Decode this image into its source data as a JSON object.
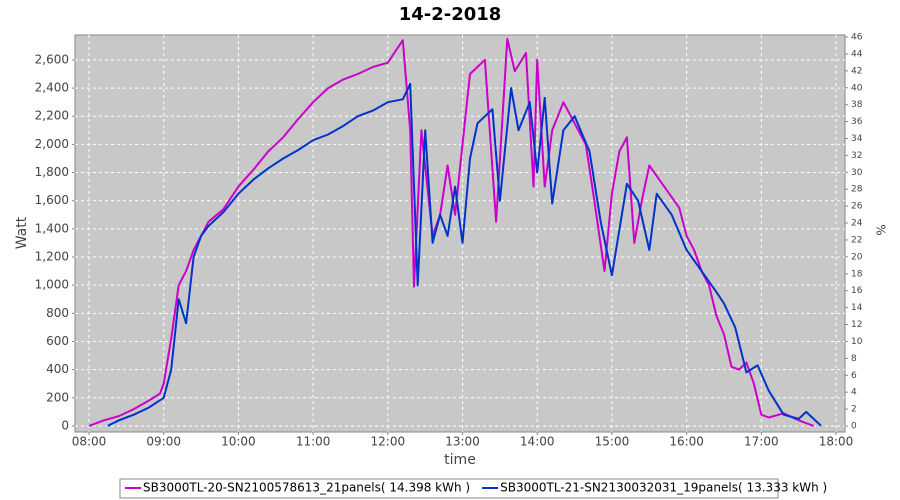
{
  "chart_data": {
    "type": "line",
    "title": "14-2-2018",
    "xlabel": "time",
    "ylabel": "Watt",
    "y2label": "%",
    "series": [
      {
        "name": "SB3000TL-20-SN2100578613_21panels( 14.398 kWh )",
        "color": "#cc00cc",
        "x": [
          8.0,
          8.2,
          8.4,
          8.6,
          8.8,
          8.95,
          9.0,
          9.1,
          9.2,
          9.3,
          9.4,
          9.5,
          9.6,
          9.8,
          10.0,
          10.2,
          10.4,
          10.6,
          10.8,
          11.0,
          11.2,
          11.4,
          11.6,
          11.8,
          12.0,
          12.2,
          12.3,
          12.35,
          12.45,
          12.6,
          12.7,
          12.8,
          12.9,
          13.0,
          13.1,
          13.3,
          13.45,
          13.6,
          13.7,
          13.85,
          13.95,
          14.0,
          14.1,
          14.2,
          14.35,
          14.5,
          14.65,
          14.75,
          14.9,
          15.0,
          15.1,
          15.2,
          15.3,
          15.4,
          15.5,
          15.7,
          15.9,
          16.0,
          16.1,
          16.2,
          16.3,
          16.4,
          16.5,
          16.6,
          16.7,
          16.8,
          16.9,
          17.0,
          17.1,
          17.3,
          17.5,
          17.7
        ],
        "values": [
          0,
          40,
          70,
          120,
          180,
          230,
          300,
          620,
          1000,
          1100,
          1250,
          1350,
          1450,
          1540,
          1700,
          1820,
          1950,
          2050,
          2180,
          2300,
          2400,
          2460,
          2500,
          2550,
          2580,
          2740,
          2100,
          990,
          2100,
          1350,
          1500,
          1850,
          1500,
          2000,
          2500,
          2600,
          1450,
          2750,
          2520,
          2650,
          1700,
          2600,
          1700,
          2100,
          2300,
          2150,
          2000,
          1650,
          1100,
          1650,
          1950,
          2050,
          1300,
          1600,
          1850,
          1700,
          1550,
          1350,
          1250,
          1100,
          1000,
          780,
          650,
          420,
          400,
          450,
          300,
          80,
          60,
          90,
          40,
          0
        ]
      },
      {
        "name": "SB3000TL-21-SN2130032031_19panels( 13.333 kWh )",
        "color": "#0033cc",
        "x": [
          8.25,
          8.4,
          8.6,
          8.8,
          9.0,
          9.1,
          9.2,
          9.3,
          9.4,
          9.5,
          9.6,
          9.8,
          10.0,
          10.2,
          10.4,
          10.6,
          10.8,
          11.0,
          11.2,
          11.4,
          11.6,
          11.8,
          12.0,
          12.2,
          12.3,
          12.4,
          12.5,
          12.6,
          12.7,
          12.8,
          12.9,
          13.0,
          13.1,
          13.2,
          13.4,
          13.5,
          13.65,
          13.75,
          13.9,
          14.0,
          14.1,
          14.2,
          14.35,
          14.5,
          14.7,
          14.85,
          15.0,
          15.2,
          15.35,
          15.5,
          15.6,
          15.8,
          16.0,
          16.2,
          16.4,
          16.5,
          16.65,
          16.8,
          16.95,
          17.1,
          17.3,
          17.5,
          17.6,
          17.8
        ],
        "values": [
          0,
          40,
          80,
          130,
          200,
          400,
          900,
          730,
          1200,
          1350,
          1420,
          1520,
          1650,
          1750,
          1830,
          1900,
          1960,
          2030,
          2070,
          2130,
          2200,
          2240,
          2300,
          2320,
          2430,
          1000,
          2100,
          1300,
          1500,
          1350,
          1700,
          1300,
          1900,
          2150,
          2250,
          1600,
          2400,
          2100,
          2300,
          1800,
          2330,
          1580,
          2100,
          2200,
          1950,
          1450,
          1070,
          1720,
          1600,
          1250,
          1650,
          1500,
          1250,
          1100,
          950,
          870,
          700,
          380,
          430,
          250,
          80,
          50,
          100,
          0
        ]
      }
    ],
    "xlim": [
      7.8125,
      18.12
    ],
    "xticks": [
      {
        "value": 8,
        "label": "08:00"
      },
      {
        "value": 9,
        "label": "09:00"
      },
      {
        "value": 10,
        "label": "10:00"
      },
      {
        "value": 11,
        "label": "11:00"
      },
      {
        "value": 12,
        "label": "12:00"
      },
      {
        "value": 13,
        "label": "13:00"
      },
      {
        "value": 14,
        "label": "14:00"
      },
      {
        "value": 15,
        "label": "15:00"
      },
      {
        "value": 16,
        "label": "16:00"
      },
      {
        "value": 17,
        "label": "17:00"
      },
      {
        "value": 18,
        "label": "18:00"
      }
    ],
    "ylim": [
      -43,
      2777
    ],
    "yticks": [
      0,
      200,
      400,
      600,
      800,
      {
        "value": 1000,
        "label": "1,000"
      },
      {
        "value": 1200,
        "label": "1,200"
      },
      {
        "value": 1400,
        "label": "1,400"
      },
      {
        "value": 1600,
        "label": "1,600"
      },
      {
        "value": 1800,
        "label": "1,800"
      },
      {
        "value": 2000,
        "label": "2,000"
      },
      {
        "value": 2200,
        "label": "2,200"
      },
      {
        "value": 2400,
        "label": "2,400"
      },
      {
        "value": 2600,
        "label": "2,600"
      }
    ],
    "y2lim": [
      -0.71,
      46.24
    ],
    "y2ticks": [
      0,
      2,
      4,
      6,
      8,
      10,
      12,
      14,
      16,
      18,
      20,
      22,
      24,
      26,
      28,
      30,
      32,
      34,
      36,
      38,
      40,
      42,
      44,
      46
    ],
    "grid": true
  }
}
